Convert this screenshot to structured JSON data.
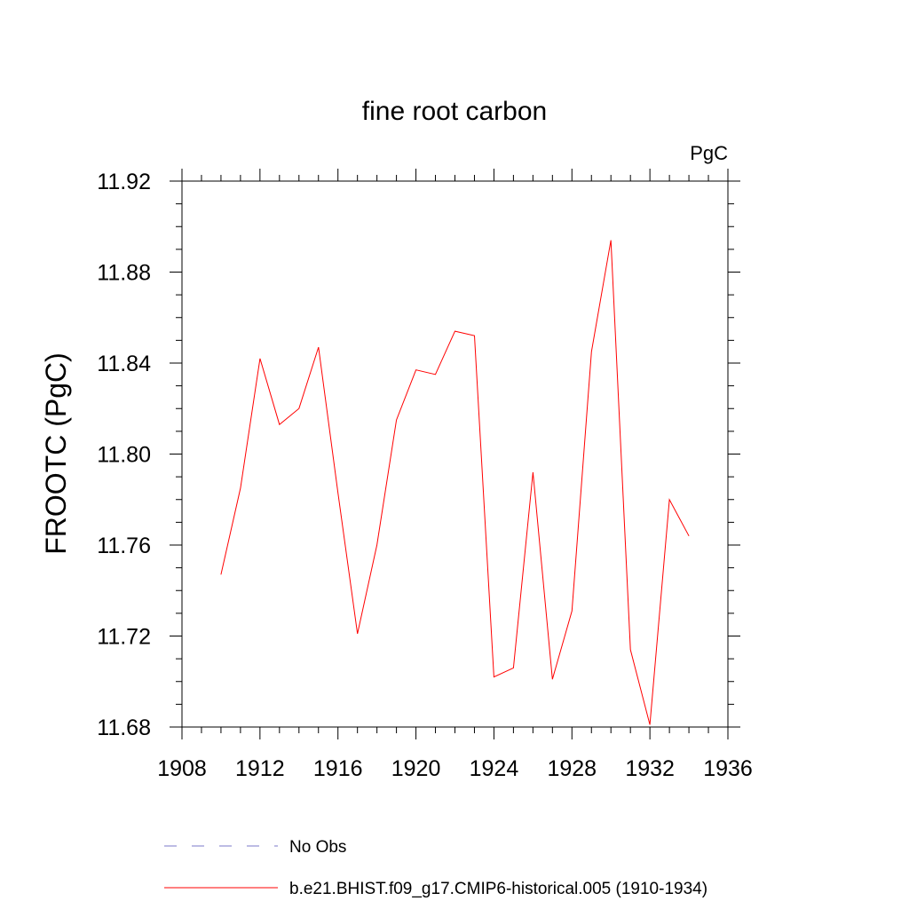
{
  "chart_data": {
    "type": "line",
    "title": "fine root carbon",
    "units_label": "PgC",
    "xlabel": "",
    "ylabel": "FROOTC  (PgC)",
    "xlim": [
      1908,
      1936
    ],
    "ylim": [
      11.68,
      11.92
    ],
    "x_ticks": [
      "1908",
      "1912",
      "1916",
      "1920",
      "1924",
      "1928",
      "1932",
      "1936"
    ],
    "y_ticks": [
      "11.68",
      "11.72",
      "11.76",
      "11.80",
      "11.84",
      "11.88",
      "11.92"
    ],
    "grid": false,
    "legend_position": "bottom",
    "series": [
      {
        "name": "b.e21.BHIST.f09_g17.CMIP6-historical.005 (1910-1934)",
        "color": "#ff0000",
        "style": "solid",
        "x": [
          1910,
          1911,
          1912,
          1913,
          1914,
          1915,
          1916,
          1917,
          1918,
          1919,
          1920,
          1921,
          1922,
          1923,
          1924,
          1925,
          1926,
          1927,
          1928,
          1929,
          1930,
          1931,
          1932,
          1933,
          1934
        ],
        "y": [
          11.747,
          11.785,
          11.842,
          11.813,
          11.82,
          11.847,
          11.783,
          11.721,
          11.76,
          11.815,
          11.837,
          11.835,
          11.854,
          11.852,
          11.702,
          11.706,
          11.792,
          11.701,
          11.731,
          11.845,
          11.894,
          11.714,
          11.681,
          11.78,
          11.764
        ]
      }
    ],
    "legend": [
      {
        "label": "No Obs",
        "color": "#7b78c8",
        "style": "dashed"
      },
      {
        "label": "b.e21.BHIST.f09_g17.CMIP6-historical.005 (1910-1934)",
        "color": "#ff0000",
        "style": "solid"
      }
    ]
  }
}
